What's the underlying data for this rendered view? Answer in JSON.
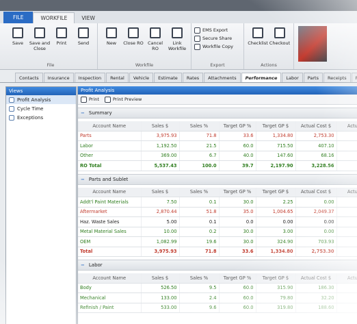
{
  "ribbon": {
    "tabs": [
      "FILE",
      "WORKFILE",
      "VIEW"
    ],
    "active_tab_index": 1,
    "groups": [
      {
        "label": "File",
        "buttons": [
          "Save",
          "Save and Close",
          "Print",
          "Send"
        ]
      },
      {
        "label": "Workfile",
        "buttons": [
          "New",
          "Close RO",
          "Cancel RO",
          "Link Workfile"
        ]
      },
      {
        "label": "Export",
        "layout": "list",
        "buttons": [
          "EMS Export",
          "Secure Share",
          "Workfile Copy"
        ]
      },
      {
        "label": "Actions",
        "buttons": [
          "Checklist",
          "Checkout"
        ]
      }
    ]
  },
  "nav_tabs": [
    "Contacts",
    "Insurance",
    "Inspection",
    "Rental",
    "Vehicle",
    "Estimate",
    "Rates",
    "Attachments",
    "Performance",
    "Labor",
    "Parts",
    "Receipts",
    "Repair"
  ],
  "active_nav_index": 8,
  "sidebar": {
    "title": "Views",
    "items": [
      "Profit Analysis",
      "Cycle Time",
      "Exceptions"
    ],
    "active_index": 0
  },
  "panel": {
    "title": "Profit Analysis",
    "toolbar": [
      "Print",
      "Print Preview"
    ],
    "columns": [
      "Account Name",
      "Sales $",
      "Sales %",
      "Target GP %",
      "Target GP $",
      "Actual Cost $",
      "Actual G"
    ],
    "sections": [
      {
        "title": "Summary",
        "rows": [
          {
            "cells": [
              "Parts",
              "3,975.93",
              "71.8",
              "33.6",
              "1,334.80",
              "2,753.30"
            ],
            "color": "#c0392b"
          },
          {
            "cells": [
              "Labor",
              "1,192.50",
              "21.5",
              "60.0",
              "715.50",
              "407.10"
            ],
            "color": "#2e7d1e"
          },
          {
            "cells": [
              "Other",
              "369.00",
              "6.7",
              "40.0",
              "147.60",
              "68.16"
            ],
            "color": "#2e7d1e"
          },
          {
            "cells": [
              "RO Total",
              "5,537.43",
              "100.0",
              "39.7",
              "2,197.90",
              "3,228.56"
            ],
            "color": "#2e7d1e",
            "bold": true
          }
        ]
      },
      {
        "title": "Parts and Sublet",
        "rows": [
          {
            "cells": [
              "Addt'l Paint Materials",
              "7.50",
              "0.1",
              "30.0",
              "2.25",
              "0.00"
            ],
            "color": "#2e7d1e"
          },
          {
            "cells": [
              "Aftermarket",
              "2,870.44",
              "51.8",
              "35.0",
              "1,004.65",
              "2,049.37"
            ],
            "color": "#c0392b"
          },
          {
            "cells": [
              "Haz. Waste Sales",
              "5.00",
              "0.1",
              "0.0",
              "0.00",
              "0.00"
            ],
            "color": "#222222"
          },
          {
            "cells": [
              "Metal Material Sales",
              "10.00",
              "0.2",
              "30.0",
              "3.00",
              "0.00"
            ],
            "color": "#2e7d1e"
          },
          {
            "cells": [
              "OEM",
              "1,082.99",
              "19.6",
              "30.0",
              "324.90",
              "703.93"
            ],
            "color": "#2e7d1e"
          },
          {
            "cells": [
              "Total",
              "3,975.93",
              "71.8",
              "33.6",
              "1,334.80",
              "2,753.30"
            ],
            "color": "#c0392b",
            "bold": true
          }
        ]
      },
      {
        "title": "Labor",
        "rows": [
          {
            "cells": [
              "Body",
              "526.50",
              "9.5",
              "60.0",
              "315.90",
              "186.30"
            ],
            "color": "#2e7d1e"
          },
          {
            "cells": [
              "Mechanical",
              "133.00",
              "2.4",
              "60.0",
              "79.80",
              "32.20"
            ],
            "color": "#2e7d1e"
          },
          {
            "cells": [
              "Refinish / Paint",
              "533.00",
              "9.6",
              "60.0",
              "319.80",
              "188.60"
            ],
            "color": "#2e7d1e"
          }
        ]
      }
    ]
  }
}
